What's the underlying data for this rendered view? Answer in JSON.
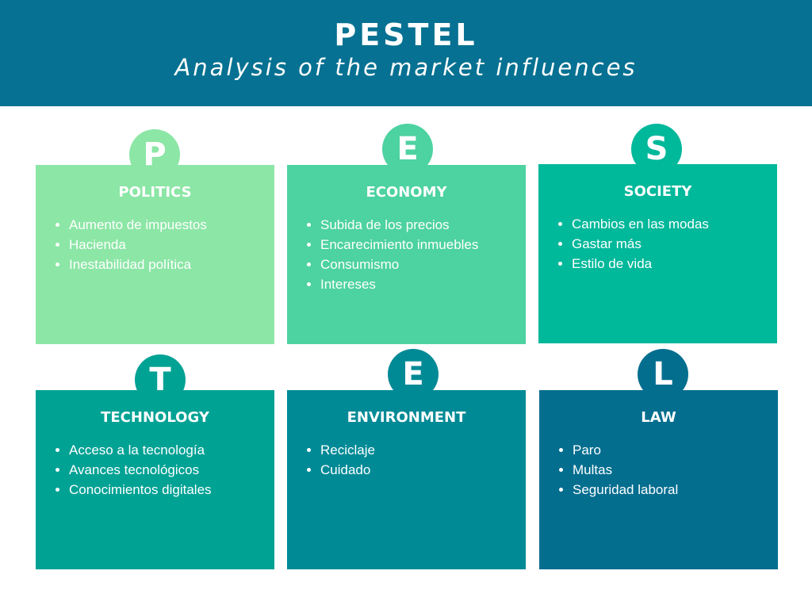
{
  "header": {
    "title": "PESTEL",
    "subtitle": "Analysis of the market influences"
  },
  "cards": [
    {
      "letter": "P",
      "title": "POLITICS",
      "color": "#8ce6a6",
      "items": [
        "Aumento de impuestos",
        "Hacienda",
        "Inestabilidad política"
      ]
    },
    {
      "letter": "E",
      "title": "ECONOMY",
      "color": "#4dd2a1",
      "items": [
        "Subida de los precios",
        "Encarecimiento inmuebles",
        "Consumismo",
        "Intereses"
      ]
    },
    {
      "letter": "S",
      "title": "SOCIETY",
      "color": "#00b89a",
      "items": [
        "Cambios en las modas",
        "Gastar más",
        "Estilo de vida"
      ]
    },
    {
      "letter": "T",
      "title": "TECHNOLOGY",
      "color": "#00a294",
      "items": [
        "Acceso a la tecnología",
        "Avances tecnológicos",
        "Conocimientos digitales"
      ]
    },
    {
      "letter": "E",
      "title": "ENVIRONMENT",
      "color": "#008a96",
      "items": [
        "Reciclaje",
        "Cuidado"
      ]
    },
    {
      "letter": "L",
      "title": "LAW",
      "color": "#046e8f",
      "items": [
        "Paro",
        "Multas",
        "Seguridad laboral"
      ]
    }
  ]
}
